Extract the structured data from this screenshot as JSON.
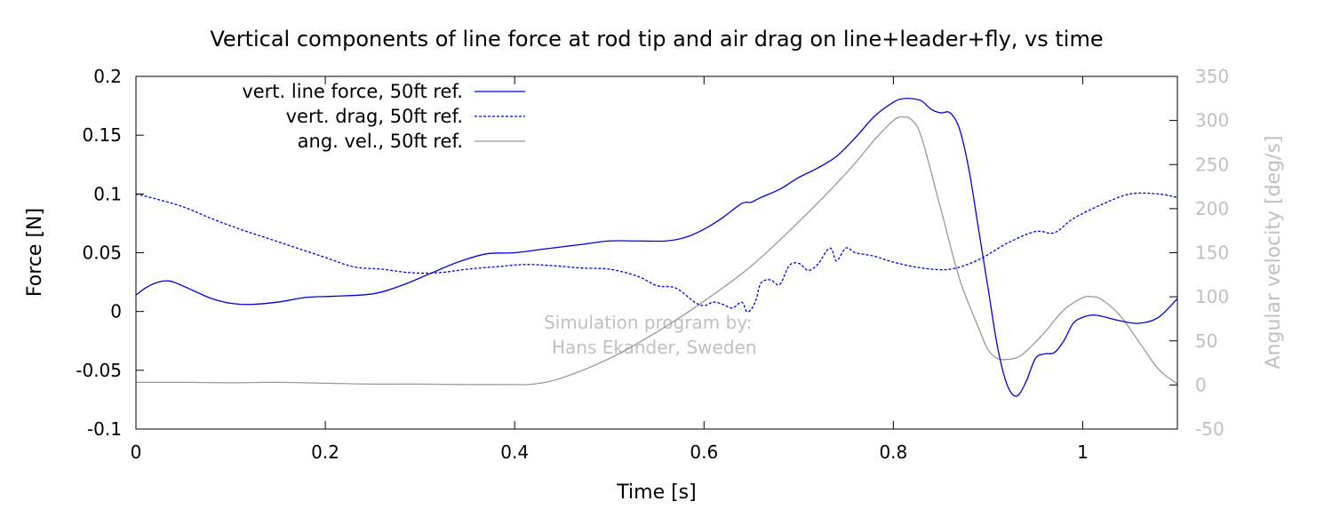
{
  "chart_data": {
    "type": "line",
    "title": "Vertical components of line force at rod tip and air drag on line+leader+fly, vs time",
    "xlabel": "Time [s]",
    "ylabel": "Force [N]",
    "y2label": "Angular velocity [deg/s]",
    "xlim": [
      0,
      1.1
    ],
    "ylim": [
      -0.1,
      0.2
    ],
    "y2lim": [
      -50,
      350
    ],
    "xticks": [
      0,
      0.2,
      0.4,
      0.6,
      0.8,
      1
    ],
    "xtick_labels": [
      "0",
      "0.2",
      "0.4",
      "0.6",
      "0.8",
      "1"
    ],
    "yticks": [
      -0.1,
      -0.05,
      0,
      0.05,
      0.1,
      0.15,
      0.2
    ],
    "ytick_labels": [
      "-0.1",
      "-0.05",
      "0",
      "0.05",
      "0.1",
      "0.15",
      "0.2"
    ],
    "y2ticks": [
      -50,
      0,
      50,
      100,
      150,
      200,
      250,
      300,
      350
    ],
    "y2tick_labels": [
      "-50",
      "0",
      "50",
      "100",
      "150",
      "200",
      "250",
      "300",
      "350"
    ],
    "grid": false,
    "legend_position": "top-left",
    "watermark": [
      "Simulation program by:",
      "Hans Ekander, Sweden"
    ],
    "colors": {
      "line_force": "#0000e0",
      "drag": "#0000e0",
      "ang_vel": "#999999",
      "right_axis": "#c0c0c0",
      "watermark": "#c0c0c0"
    },
    "series": [
      {
        "name": "vert. line force, 50ft ref.",
        "axis": "y1",
        "style": "solid",
        "x": [
          0,
          0.01,
          0.02,
          0.03,
          0.04,
          0.06,
          0.08,
          0.1,
          0.12,
          0.15,
          0.18,
          0.21,
          0.25,
          0.28,
          0.31,
          0.34,
          0.37,
          0.4,
          0.43,
          0.47,
          0.5,
          0.53,
          0.56,
          0.58,
          0.6,
          0.62,
          0.64,
          0.65,
          0.66,
          0.68,
          0.7,
          0.72,
          0.74,
          0.76,
          0.78,
          0.8,
          0.81,
          0.82,
          0.83,
          0.84,
          0.85,
          0.86,
          0.87,
          0.88,
          0.89,
          0.9,
          0.91,
          0.92,
          0.93,
          0.94,
          0.95,
          0.96,
          0.97,
          0.98,
          0.99,
          1.0,
          1.01,
          1.02,
          1.04,
          1.06,
          1.08,
          1.1
        ],
        "y": [
          0.014,
          0.02,
          0.024,
          0.026,
          0.025,
          0.018,
          0.011,
          0.007,
          0.006,
          0.008,
          0.012,
          0.013,
          0.015,
          0.022,
          0.032,
          0.042,
          0.049,
          0.05,
          0.053,
          0.057,
          0.06,
          0.06,
          0.06,
          0.063,
          0.07,
          0.08,
          0.092,
          0.093,
          0.097,
          0.104,
          0.114,
          0.122,
          0.132,
          0.148,
          0.166,
          0.178,
          0.181,
          0.181,
          0.179,
          0.172,
          0.169,
          0.169,
          0.155,
          0.12,
          0.07,
          0.02,
          -0.03,
          -0.062,
          -0.072,
          -0.06,
          -0.04,
          -0.036,
          -0.035,
          -0.025,
          -0.01,
          -0.005,
          -0.003,
          -0.004,
          -0.008,
          -0.01,
          -0.005,
          0.011
        ]
      },
      {
        "name": "vert. drag, 50ft ref.",
        "axis": "y1",
        "style": "dashed",
        "x": [
          0,
          0.02,
          0.05,
          0.08,
          0.11,
          0.14,
          0.17,
          0.2,
          0.23,
          0.26,
          0.29,
          0.32,
          0.35,
          0.38,
          0.41,
          0.44,
          0.47,
          0.5,
          0.53,
          0.55,
          0.57,
          0.59,
          0.6,
          0.61,
          0.62,
          0.63,
          0.64,
          0.645,
          0.65,
          0.655,
          0.66,
          0.67,
          0.68,
          0.69,
          0.7,
          0.71,
          0.72,
          0.73,
          0.735,
          0.74,
          0.75,
          0.76,
          0.78,
          0.8,
          0.83,
          0.86,
          0.89,
          0.92,
          0.95,
          0.97,
          0.99,
          1.02,
          1.05,
          1.08,
          1.1
        ],
        "y": [
          0.1,
          0.096,
          0.089,
          0.079,
          0.07,
          0.062,
          0.054,
          0.046,
          0.038,
          0.036,
          0.033,
          0.033,
          0.036,
          0.038,
          0.04,
          0.039,
          0.037,
          0.036,
          0.03,
          0.022,
          0.02,
          0.008,
          0.005,
          0.008,
          0.006,
          0.003,
          0.008,
          0.0,
          0.002,
          0.01,
          0.024,
          0.027,
          0.023,
          0.039,
          0.041,
          0.035,
          0.04,
          0.052,
          0.053,
          0.043,
          0.054,
          0.05,
          0.047,
          0.042,
          0.037,
          0.036,
          0.044,
          0.058,
          0.068,
          0.067,
          0.079,
          0.091,
          0.1,
          0.1,
          0.097
        ]
      },
      {
        "name": "ang. vel., 50ft ref.",
        "axis": "y2",
        "style": "solid",
        "x": [
          0,
          0.05,
          0.1,
          0.15,
          0.2,
          0.25,
          0.3,
          0.35,
          0.4,
          0.42,
          0.45,
          0.5,
          0.55,
          0.6,
          0.65,
          0.7,
          0.75,
          0.78,
          0.8,
          0.81,
          0.82,
          0.83,
          0.85,
          0.87,
          0.89,
          0.9,
          0.91,
          0.92,
          0.93,
          0.94,
          0.96,
          0.98,
          1.0,
          1.01,
          1.02,
          1.04,
          1.06,
          1.08,
          1.1
        ],
        "y": [
          3,
          3,
          2.5,
          3,
          2,
          1,
          1,
          0.5,
          0.5,
          1,
          8,
          30,
          60,
          95,
          135,
          185,
          240,
          278,
          300,
          304,
          300,
          280,
          200,
          120,
          65,
          40,
          30,
          29,
          31,
          38,
          60,
          85,
          99,
          100,
          97,
          78,
          48,
          18,
          1
        ]
      }
    ]
  }
}
